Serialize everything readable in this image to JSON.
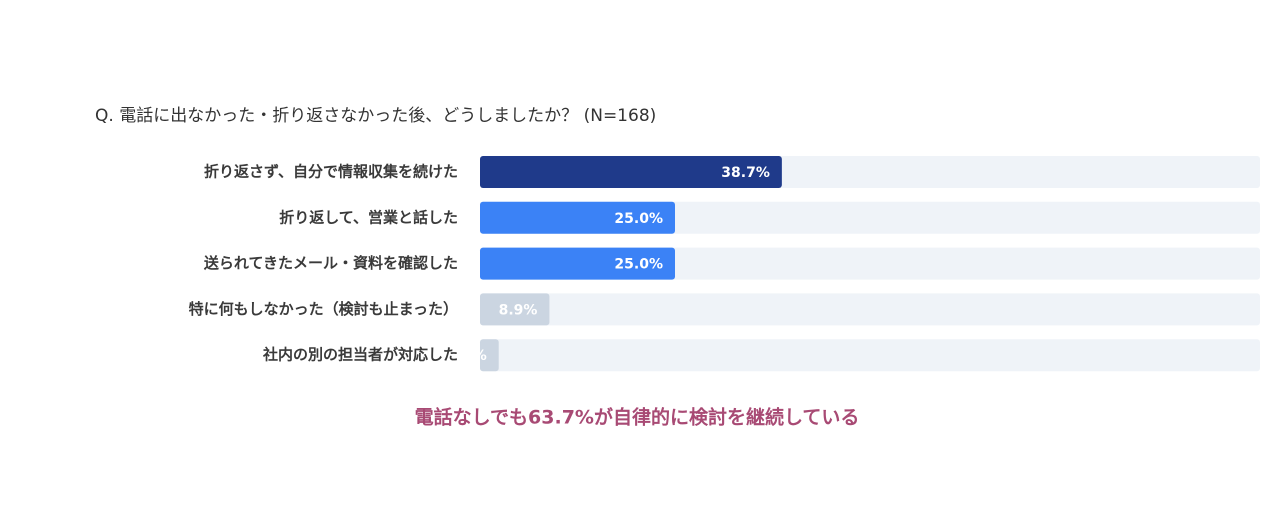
{
  "chart_data": {
    "type": "bar",
    "orientation": "horizontal",
    "title": "Q. 電話に出なかった・折り返さなかった後、どうしましたか？ (N=168)",
    "categories": [
      "折り返さず、自分で情報収集を続けた",
      "折り返して、営業と話した",
      "送られてきたメール・資料を確認した",
      "特に何もしなかった（検討も止まった）",
      "社内の別の担当者が対応した"
    ],
    "values": [
      38.7,
      25.0,
      25.0,
      8.9,
      2.4
    ],
    "value_labels": [
      "38.7%",
      "25.0%",
      "25.0%",
      "8.9%",
      "2.4%"
    ],
    "colors": [
      "#1f3a8a",
      "#3b82f6",
      "#3b82f6",
      "#cbd5e1",
      "#cbd5e1"
    ],
    "track_color": "#eff3f8",
    "xlim": [
      0,
      100
    ],
    "annotation": "電話なしでも63.7%が自律的に検討を継続している"
  }
}
